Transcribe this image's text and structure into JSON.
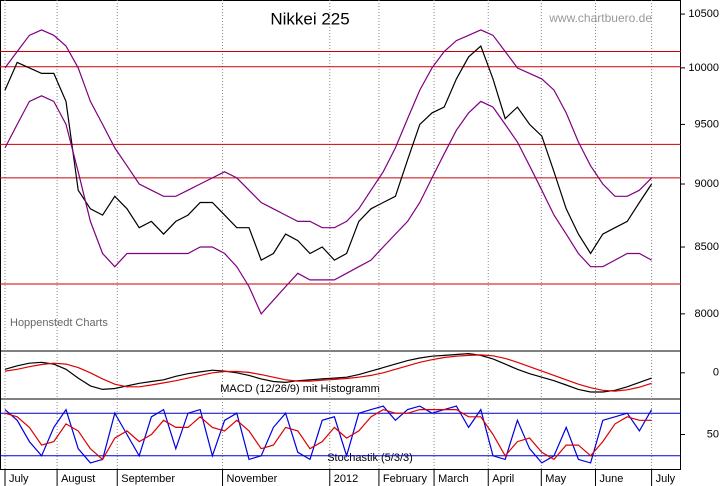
{
  "chart_data": [
    {
      "type": "line",
      "title": "Nikkei 225",
      "subtitle": "www.chartbuero.de",
      "annotation": "Hoppenstedt Charts",
      "log_scale": true,
      "ylim": [
        7735,
        10635
      ],
      "yticks": [
        8000,
        8500,
        9000,
        9500,
        10000,
        10500
      ],
      "xlim": [
        0,
        55
      ],
      "xticks": [
        {
          "value": 0,
          "label": "July"
        },
        {
          "value": 4.27,
          "label": "August"
        },
        {
          "value": 9.2,
          "label": "September"
        },
        {
          "value": 17.83,
          "label": "November"
        },
        {
          "value": 26.62,
          "label": "2012"
        },
        {
          "value": 30.65,
          "label": "February"
        },
        {
          "value": 35.17,
          "label": "March"
        },
        {
          "value": 39.61,
          "label": "April"
        },
        {
          "value": 43.96,
          "label": "May"
        },
        {
          "value": 48.4,
          "label": "June"
        },
        {
          "value": 53,
          "label": "July"
        }
      ],
      "hlines": [
        10150,
        10010,
        9330,
        9050,
        8220
      ],
      "hline_color": "#cc0000",
      "series": [
        {
          "color": "#000000",
          "values": [
            9800,
            10050,
            10000,
            9950,
            9950,
            9700,
            8950,
            8800,
            8750,
            8900,
            8800,
            8650,
            8700,
            8600,
            8700,
            8750,
            8850,
            8850,
            8750,
            8650,
            8650,
            8400,
            8450,
            8600,
            8550,
            8450,
            8500,
            8400,
            8450,
            8700,
            8800,
            8850,
            8900,
            9200,
            9500,
            9600,
            9650,
            9900,
            10100,
            10200,
            9900,
            9550,
            9650,
            9500,
            9400,
            9100,
            8800,
            8600,
            8450,
            8600,
            8650,
            8700,
            8850,
            9000
          ]
        },
        {
          "color": "#800080",
          "values": [
            10000,
            10150,
            10300,
            10350,
            10300,
            10200,
            10000,
            9700,
            9500,
            9300,
            9150,
            9000,
            8950,
            8900,
            8900,
            8950,
            9000,
            9050,
            9100,
            9050,
            8950,
            8850,
            8800,
            8750,
            8700,
            8700,
            8650,
            8650,
            8700,
            8800,
            8950,
            9100,
            9300,
            9550,
            9800,
            10000,
            10150,
            10250,
            10300,
            10350,
            10300,
            10150,
            10000,
            9950,
            9900,
            9800,
            9600,
            9350,
            9150,
            9000,
            8900,
            8900,
            8950,
            9050
          ]
        },
        {
          "color": "#800080",
          "values": [
            9300,
            9500,
            9700,
            9750,
            9700,
            9500,
            9100,
            8700,
            8450,
            8350,
            8450,
            8450,
            8450,
            8450,
            8450,
            8450,
            8500,
            8500,
            8450,
            8350,
            8200,
            8000,
            8100,
            8200,
            8300,
            8250,
            8250,
            8250,
            8300,
            8350,
            8400,
            8500,
            8600,
            8700,
            8850,
            9050,
            9250,
            9450,
            9600,
            9700,
            9650,
            9500,
            9350,
            9150,
            8950,
            8750,
            8600,
            8450,
            8350,
            8350,
            8400,
            8450,
            8450,
            8400
          ]
        }
      ]
    },
    {
      "type": "line",
      "title": "MACD (12/26/9) mit Histogramm",
      "ylim": [
        -300,
        250
      ],
      "yticks": [
        0
      ],
      "xlim": [
        0,
        55
      ],
      "series": [
        {
          "color": "#000000",
          "values": [
            40,
            80,
            110,
            120,
            100,
            40,
            -60,
            -150,
            -190,
            -180,
            -150,
            -120,
            -100,
            -80,
            -40,
            -10,
            10,
            30,
            20,
            0,
            -30,
            -70,
            -100,
            -110,
            -90,
            -80,
            -70,
            -60,
            -50,
            -20,
            20,
            60,
            100,
            140,
            170,
            190,
            200,
            210,
            220,
            200,
            160,
            100,
            40,
            -10,
            -50,
            -90,
            -140,
            -190,
            -220,
            -220,
            -200,
            -160,
            -110,
            -60
          ]
        },
        {
          "color": "#dd0000",
          "values": [
            20,
            40,
            70,
            95,
            110,
            100,
            60,
            0,
            -70,
            -130,
            -160,
            -160,
            -140,
            -115,
            -90,
            -60,
            -30,
            0,
            15,
            15,
            5,
            -20,
            -50,
            -80,
            -95,
            -95,
            -85,
            -75,
            -65,
            -50,
            -30,
            0,
            40,
            80,
            120,
            150,
            175,
            190,
            200,
            205,
            195,
            165,
            120,
            70,
            20,
            -30,
            -80,
            -130,
            -170,
            -200,
            -210,
            -195,
            -165,
            -120
          ]
        }
      ]
    },
    {
      "type": "line",
      "title": "Stochastik (5/3/3)",
      "ylim": [
        0,
        100
      ],
      "yticks": [
        50
      ],
      "xlim": [
        0,
        55
      ],
      "hlines": [
        80,
        20
      ],
      "hline_color": "#0000cc",
      "series": [
        {
          "color": "#0000dd",
          "values": [
            85,
            70,
            40,
            20,
            60,
            85,
            30,
            10,
            15,
            80,
            50,
            20,
            75,
            85,
            30,
            80,
            85,
            20,
            70,
            80,
            15,
            20,
            60,
            80,
            25,
            15,
            70,
            75,
            20,
            80,
            85,
            90,
            70,
            85,
            90,
            80,
            85,
            90,
            60,
            85,
            20,
            15,
            70,
            30,
            10,
            20,
            60,
            15,
            10,
            70,
            75,
            80,
            55,
            85
          ]
        },
        {
          "color": "#dd0000",
          "values": [
            80,
            75,
            60,
            35,
            40,
            65,
            55,
            30,
            15,
            45,
            55,
            40,
            50,
            70,
            60,
            60,
            75,
            60,
            55,
            70,
            55,
            30,
            35,
            60,
            55,
            30,
            40,
            60,
            45,
            55,
            75,
            85,
            80,
            80,
            85,
            85,
            85,
            85,
            75,
            75,
            50,
            20,
            40,
            45,
            25,
            15,
            35,
            35,
            20,
            40,
            65,
            75,
            70,
            70
          ]
        }
      ]
    }
  ]
}
